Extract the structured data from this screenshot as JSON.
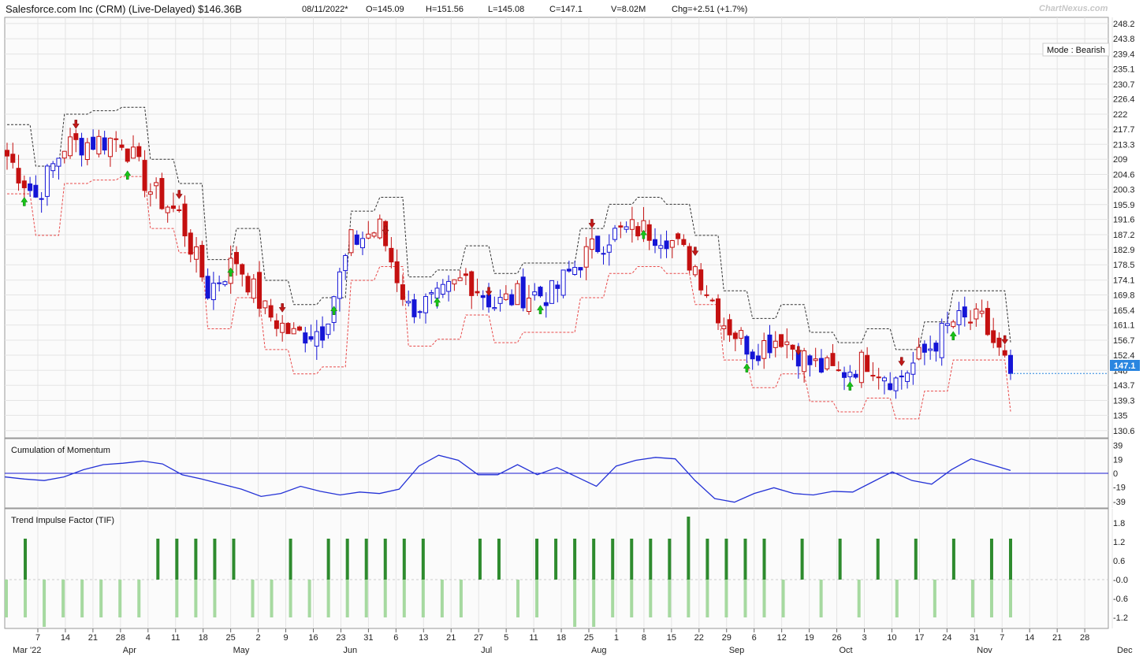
{
  "header": {
    "title": "Salesforce.com Inc (CRM) (Live-Delayed) $146.36B",
    "date": "08/11/2022*",
    "open": "O=145.09",
    "high": "H=151.56",
    "low": "L=145.08",
    "close": "C=147.1",
    "volume": "V=8.02M",
    "change": "Chg=+2.51 (+1.7%)",
    "brand": "ChartNexus.com"
  },
  "mode_label": "Mode : Bearish",
  "last_price_label": "147.1",
  "panels": {
    "momentum_title": "Cumulation of Momentum",
    "tif_title": "Trend Impulse Factor (TIF)"
  },
  "colors": {
    "bull_hollow": "#2a2ad9",
    "bull_solid": "#1515d6",
    "bear_solid": "#c41010",
    "bear_hollow": "#c41010",
    "upper_band": "#333333",
    "lower_band": "#e84b4b",
    "momentum_line": "#2432d6",
    "tif_dark": "#2e8b2e",
    "tif_light": "#a6d9a0",
    "buy_arrow": "#18c418",
    "sell_arrow": "#c01818",
    "last_price_bg": "#2b86e0"
  },
  "chart_data": {
    "type": "candlestick",
    "price_axis_ticks": [
      "248.2",
      "243.8",
      "239.4",
      "235.1",
      "230.7",
      "226.4",
      "222",
      "217.7",
      "213.3",
      "209",
      "204.6",
      "200.3",
      "195.9",
      "191.6",
      "187.2",
      "182.9",
      "178.5",
      "174.1",
      "169.8",
      "165.4",
      "161.1",
      "156.7",
      "152.4",
      "148",
      "143.7",
      "139.3",
      "135",
      "130.6"
    ],
    "momentum_axis_ticks": [
      "39",
      "19",
      "0",
      "-19",
      "-39"
    ],
    "tif_axis_ticks": [
      "1.8",
      "1.2",
      "0.6",
      "-0.0",
      "-0.6",
      "-1.2"
    ],
    "x_axis_labels": [
      {
        "day": "7",
        "month": "Mar '22"
      },
      {
        "day": "14",
        "month": ""
      },
      {
        "day": "21",
        "month": ""
      },
      {
        "day": "28",
        "month": ""
      },
      {
        "day": "4",
        "month": "Apr"
      },
      {
        "day": "11",
        "month": ""
      },
      {
        "day": "18",
        "month": ""
      },
      {
        "day": "25",
        "month": ""
      },
      {
        "day": "2",
        "month": "May"
      },
      {
        "day": "9",
        "month": ""
      },
      {
        "day": "16",
        "month": ""
      },
      {
        "day": "23",
        "month": ""
      },
      {
        "day": "31",
        "month": "Jun"
      },
      {
        "day": "6",
        "month": ""
      },
      {
        "day": "13",
        "month": ""
      },
      {
        "day": "21",
        "month": ""
      },
      {
        "day": "27",
        "month": ""
      },
      {
        "day": "5",
        "month": "Jul"
      },
      {
        "day": "11",
        "month": ""
      },
      {
        "day": "18",
        "month": ""
      },
      {
        "day": "25",
        "month": ""
      },
      {
        "day": "1",
        "month": "Aug"
      },
      {
        "day": "8",
        "month": ""
      },
      {
        "day": "15",
        "month": ""
      },
      {
        "day": "22",
        "month": ""
      },
      {
        "day": "29",
        "month": ""
      },
      {
        "day": "6",
        "month": "Sep"
      },
      {
        "day": "12",
        "month": ""
      },
      {
        "day": "19",
        "month": ""
      },
      {
        "day": "26",
        "month": ""
      },
      {
        "day": "3",
        "month": "Oct"
      },
      {
        "day": "10",
        "month": ""
      },
      {
        "day": "17",
        "month": ""
      },
      {
        "day": "24",
        "month": ""
      },
      {
        "day": "31",
        "month": ""
      },
      {
        "day": "7",
        "month": "Nov"
      },
      {
        "day": "14",
        "month": ""
      },
      {
        "day": "21",
        "month": ""
      },
      {
        "day": "28",
        "month": ""
      },
      {
        "day": "",
        "month": "Dec"
      }
    ],
    "ohlc_anchor_closes": [
      {
        "date": "Mar '22",
        "close": 210
      },
      {
        "date": "Mar 14",
        "close": 198
      },
      {
        "date": "Mar 21",
        "close": 213
      },
      {
        "date": "Mar 28",
        "close": 214
      },
      {
        "date": "Apr 4",
        "close": 215
      },
      {
        "date": "Apr 11",
        "close": 200
      },
      {
        "date": "Apr 18",
        "close": 193
      },
      {
        "date": "Apr 25",
        "close": 171
      },
      {
        "date": "May 2",
        "close": 180
      },
      {
        "date": "May 9",
        "close": 165
      },
      {
        "date": "May 16",
        "close": 158
      },
      {
        "date": "May 23",
        "close": 160
      },
      {
        "date": "May 31",
        "close": 185
      },
      {
        "date": "Jun 6",
        "close": 189
      },
      {
        "date": "Jun 13",
        "close": 166
      },
      {
        "date": "Jun 21",
        "close": 168
      },
      {
        "date": "Jun 27",
        "close": 175
      },
      {
        "date": "Jul 5",
        "close": 167
      },
      {
        "date": "Jul 11",
        "close": 170
      },
      {
        "date": "Jul 18",
        "close": 170
      },
      {
        "date": "Jul 25",
        "close": 180
      },
      {
        "date": "Aug 1",
        "close": 187
      },
      {
        "date": "Aug 8",
        "close": 189
      },
      {
        "date": "Aug 15",
        "close": 187
      },
      {
        "date": "Aug 22",
        "close": 178
      },
      {
        "date": "Aug 29",
        "close": 162
      },
      {
        "date": "Sep 6",
        "close": 154
      },
      {
        "date": "Sep 12",
        "close": 158
      },
      {
        "date": "Sep 19",
        "close": 150
      },
      {
        "date": "Sep 26",
        "close": 147
      },
      {
        "date": "Oct 3",
        "close": 151
      },
      {
        "date": "Oct 10",
        "close": 145
      },
      {
        "date": "Oct 17",
        "close": 153
      },
      {
        "date": "Oct 24",
        "close": 162
      },
      {
        "date": "Oct 31",
        "close": 162
      },
      {
        "date": "Nov 7",
        "close": 147.1
      }
    ],
    "last_close": 147.1,
    "momentum_series": [
      -5,
      -8,
      -10,
      -5,
      5,
      12,
      14,
      17,
      13,
      -2,
      -8,
      -15,
      -22,
      -32,
      -28,
      -18,
      -25,
      -30,
      -26,
      -28,
      -22,
      10,
      25,
      18,
      -2,
      -2,
      12,
      -2,
      8,
      -5,
      -18,
      10,
      18,
      22,
      20,
      -10,
      -35,
      -40,
      -28,
      -20,
      -28,
      -30,
      -25,
      -26,
      -12,
      2,
      -10,
      -15,
      5,
      20,
      12,
      4
    ],
    "tif_bars": {
      "dark": [
        1,
        8,
        9,
        10,
        11,
        12,
        15,
        17,
        18,
        19,
        20,
        21,
        22,
        25,
        26,
        28,
        29,
        30,
        31,
        32,
        33,
        34,
        35,
        36,
        37,
        38,
        39,
        40,
        42,
        44,
        46,
        48,
        50,
        52,
        53
      ],
      "light_negative": [
        0,
        1,
        2,
        3,
        4,
        5,
        6,
        7,
        9,
        10,
        11,
        13,
        14,
        15,
        16,
        17,
        18,
        19,
        20,
        21,
        22,
        23,
        24,
        27,
        28,
        30,
        31,
        32,
        33,
        34,
        35,
        36,
        37,
        38,
        39,
        40,
        41,
        43,
        45,
        47,
        49,
        51,
        52,
        53
      ]
    }
  }
}
